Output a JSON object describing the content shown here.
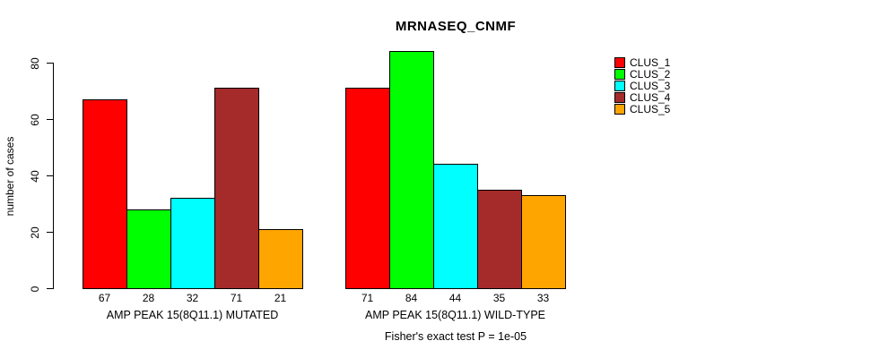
{
  "chart_data": {
    "type": "bar",
    "title": "MRNASEQ_CNMF",
    "xlabel": "",
    "ylabel": "number of cases",
    "yticks": [
      0,
      20,
      40,
      60,
      80
    ],
    "ylim": [
      0,
      84
    ],
    "grid": false,
    "legend_position": "right",
    "series": [
      "CLUS_1",
      "CLUS_2",
      "CLUS_3",
      "CLUS_4",
      "CLUS_5"
    ],
    "colors": [
      "#FF0000",
      "#00FF00",
      "#00FFFF",
      "#A52A2A",
      "#FFA500"
    ],
    "groups": [
      {
        "label": "AMP PEAK 15(8Q11.1) MUTATED",
        "values": [
          67,
          28,
          32,
          71,
          21
        ]
      },
      {
        "label": "AMP PEAK 15(8Q11.1) WILD-TYPE",
        "values": [
          71,
          84,
          44,
          35,
          33
        ]
      }
    ],
    "annotation": "Fisher's exact test P = 1e-05"
  }
}
